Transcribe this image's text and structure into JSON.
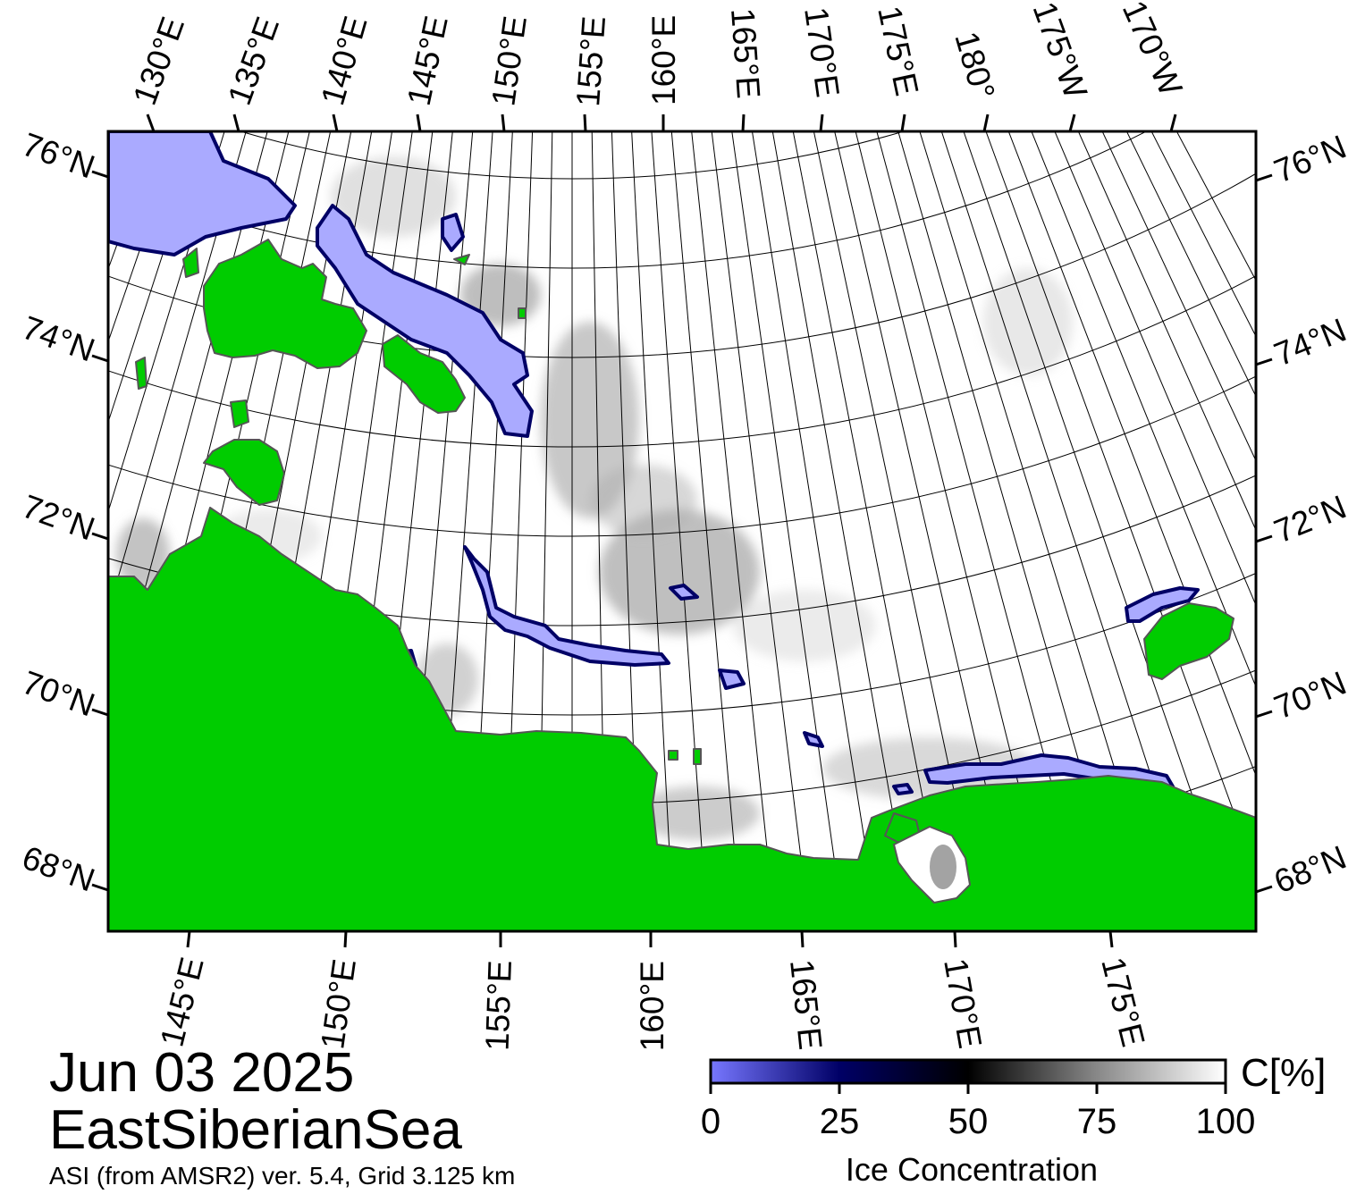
{
  "map": {
    "colors": {
      "land": "#00cc00",
      "open_water": "#aaaaff",
      "ice_full": "#ffffff",
      "ice_mid": "#000000",
      "ice_low": "#000066",
      "frame": "#000000"
    },
    "top_lon_labels": [
      "130°E",
      "135°E",
      "140°E",
      "145°E",
      "150°E",
      "155°E",
      "160°E",
      "165°E",
      "170°E",
      "175°E",
      "180°",
      "175°W",
      "170°W"
    ],
    "bottom_lon_labels": [
      "145°E",
      "150°E",
      "155°E",
      "160°E",
      "165°E",
      "170°E",
      "175°E"
    ],
    "left_lat_labels": [
      "76°N",
      "74°N",
      "72°N",
      "70°N",
      "68°N"
    ],
    "right_lat_labels": [
      "76°N",
      "74°N",
      "72°N",
      "70°N",
      "68°N"
    ]
  },
  "info": {
    "date": "Jun 03 2025",
    "region": "EastSiberianSea",
    "source": "ASI (from AMSR2) ver. 5.4,  Grid 3.125 km"
  },
  "colorbar": {
    "unit": "C[%]",
    "title": "Ice Concentration",
    "ticks": [
      "0",
      "25",
      "50",
      "75",
      "100"
    ],
    "stops": [
      {
        "value": 0,
        "color": "#7777ff"
      },
      {
        "value": 25,
        "color": "#000066"
      },
      {
        "value": 50,
        "color": "#000000"
      },
      {
        "value": 75,
        "color": "#888888"
      },
      {
        "value": 100,
        "color": "#ffffff"
      }
    ]
  }
}
